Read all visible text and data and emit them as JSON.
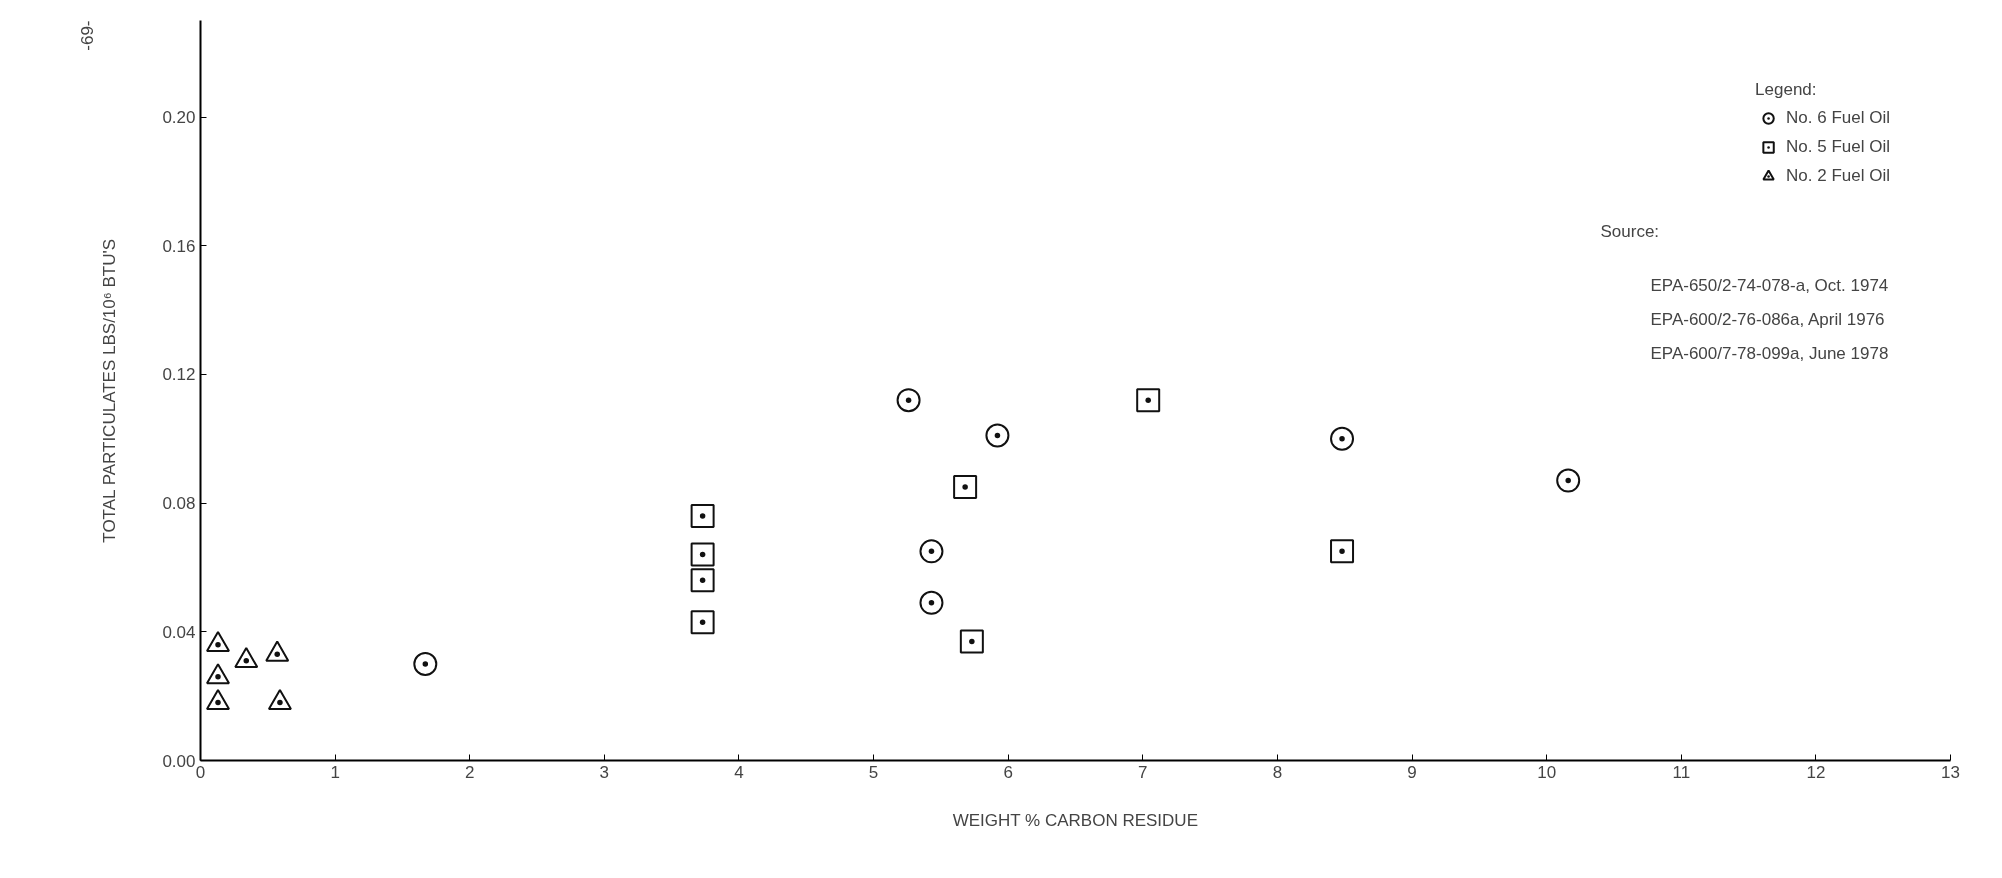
{
  "chart_data": {
    "type": "scatter",
    "xlabel": "WEIGHT % CARBON RESIDUE",
    "ylabel": "TOTAL PARTICULATES LBS/10⁶ BTU'S",
    "legend_title": "Legend:",
    "annotations": [
      "-69-",
      "Source:",
      "EPA-650/2-74-078-a, Oct. 1974",
      "EPA-600/2-76-086a, April 1976",
      "EPA-600/7-78-099a, June 1978"
    ],
    "xlim": [
      0,
      13
    ],
    "ylim": [
      0,
      0.23
    ],
    "xticks": [
      0,
      1,
      2,
      3,
      4,
      5,
      6,
      7,
      8,
      9,
      10,
      11,
      12,
      13
    ],
    "yticks": [
      {
        "value": 0,
        "label": "0.00"
      },
      {
        "value": 0.04,
        "label": "0.04"
      },
      {
        "value": 0.08,
        "label": "0.08"
      },
      {
        "value": 0.12,
        "label": "0.12"
      },
      {
        "value": 0.16,
        "label": "0.16"
      },
      {
        "value": 0.2,
        "label": "0.20"
      }
    ],
    "grid": false,
    "legend": "top right",
    "series": [
      {
        "name": "No. 6 Fuel Oil",
        "color": "#111111",
        "marker": "circle",
        "x": [
          1.67,
          5.26,
          5.92,
          5.43,
          5.43,
          8.48,
          10.16
        ],
        "values": [
          0.03,
          0.112,
          0.101,
          0.065,
          0.049,
          0.1,
          0.087
        ]
      },
      {
        "name": "No. 5 Fuel Oil",
        "color": "#111111",
        "marker": "square",
        "x": [
          3.73,
          3.73,
          3.73,
          3.73,
          5.68,
          5.73,
          7.04,
          8.48
        ],
        "values": [
          0.076,
          0.064,
          0.056,
          0.043,
          0.085,
          0.037,
          0.112,
          0.065
        ]
      },
      {
        "name": "No. 2 Fuel Oil",
        "color": "#111111",
        "marker": "triangle",
        "x": [
          0.13,
          0.13,
          0.13,
          0.34,
          0.57,
          0.59
        ],
        "values": [
          0.036,
          0.026,
          0.018,
          0.031,
          0.033,
          0.018
        ]
      }
    ]
  }
}
